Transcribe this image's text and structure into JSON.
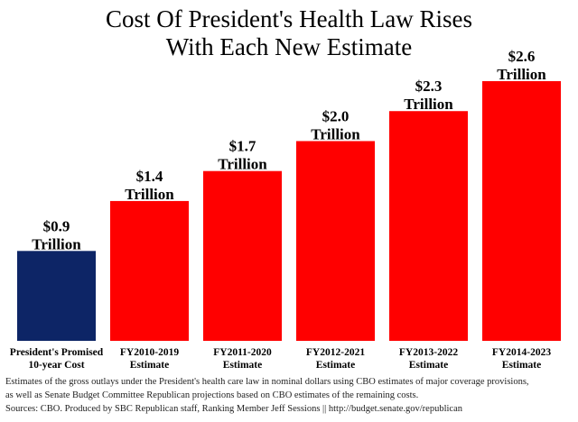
{
  "chart_data": {
    "type": "bar",
    "title": "Cost Of President's Health Law Rises With Each New Estimate",
    "title_lines": [
      "Cost Of President's Health Law Rises",
      "With Each New Estimate"
    ],
    "categories": [
      [
        "President's Promised",
        "10-year Cost"
      ],
      [
        "FY2010-2019",
        "Estimate"
      ],
      [
        "FY2011-2020",
        "Estimate"
      ],
      [
        "FY2012-2021",
        "Estimate"
      ],
      [
        "FY2013-2022",
        "Estimate"
      ],
      [
        "FY2014-2023",
        "Estimate"
      ]
    ],
    "values": [
      0.9,
      1.4,
      1.7,
      2.0,
      2.3,
      2.6
    ],
    "data_labels": [
      [
        "$0.9",
        "Trillion"
      ],
      [
        "$1.4",
        "Trillion"
      ],
      [
        "$1.7",
        "Trillion"
      ],
      [
        "$2.0",
        "Trillion"
      ],
      [
        "$2.3",
        "Trillion"
      ],
      [
        "$2.6",
        "Trillion"
      ]
    ],
    "unit": "Trillion dollars",
    "ylim": [
      0,
      2.6
    ],
    "grid": false,
    "axes_visible": false,
    "colors": [
      "#0d2566",
      "#ff0000",
      "#ff0000",
      "#ff0000",
      "#ff0000",
      "#ff0000"
    ]
  },
  "notes": [
    "Estimates of the gross outlays under the President's health care law in nominal dollars using CBO estimates of major coverage provisions,",
    "as well as Senate Budget Committee Republican projections based on CBO estimates of the remaining costs.",
    "Sources: CBO. Produced by SBC Republican staff, Ranking Member Jeff Sessions || http://budget.senate.gov/republican"
  ]
}
